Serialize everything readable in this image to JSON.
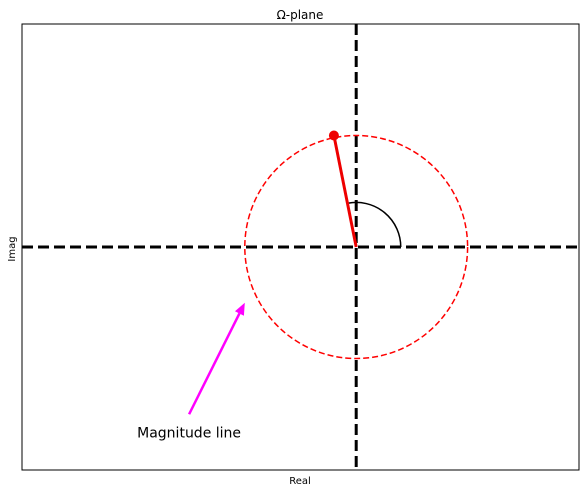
{
  "chart_data": {
    "type": "diagram",
    "title": "Ω-plane",
    "xlabel": "Real",
    "ylabel": "Imag",
    "xlim": [
      -1.5,
      1.0
    ],
    "ylim": [
      -1.0,
      1.0
    ],
    "grid": false,
    "origin": [
      0,
      0
    ],
    "unit_circle": {
      "center": [
        0,
        0
      ],
      "radius": 0.5,
      "style": "dashed",
      "color": "#ff0000"
    },
    "point": {
      "real": -0.1,
      "imag": 0.5,
      "color": "#ee0000"
    },
    "magnitude_line": {
      "from": [
        0,
        0
      ],
      "to": [
        -0.1,
        0.5
      ],
      "color": "#ee0000"
    },
    "angle_arc": {
      "radius": 0.2,
      "from_deg": 0,
      "to_deg": 101,
      "color": "#000000"
    },
    "annotation": {
      "text": "Magnitude line",
      "arrow_from": [
        -0.75,
        -0.75
      ],
      "arrow_to": [
        -0.5,
        -0.25
      ],
      "arrow_color": "#ff00ff"
    }
  }
}
